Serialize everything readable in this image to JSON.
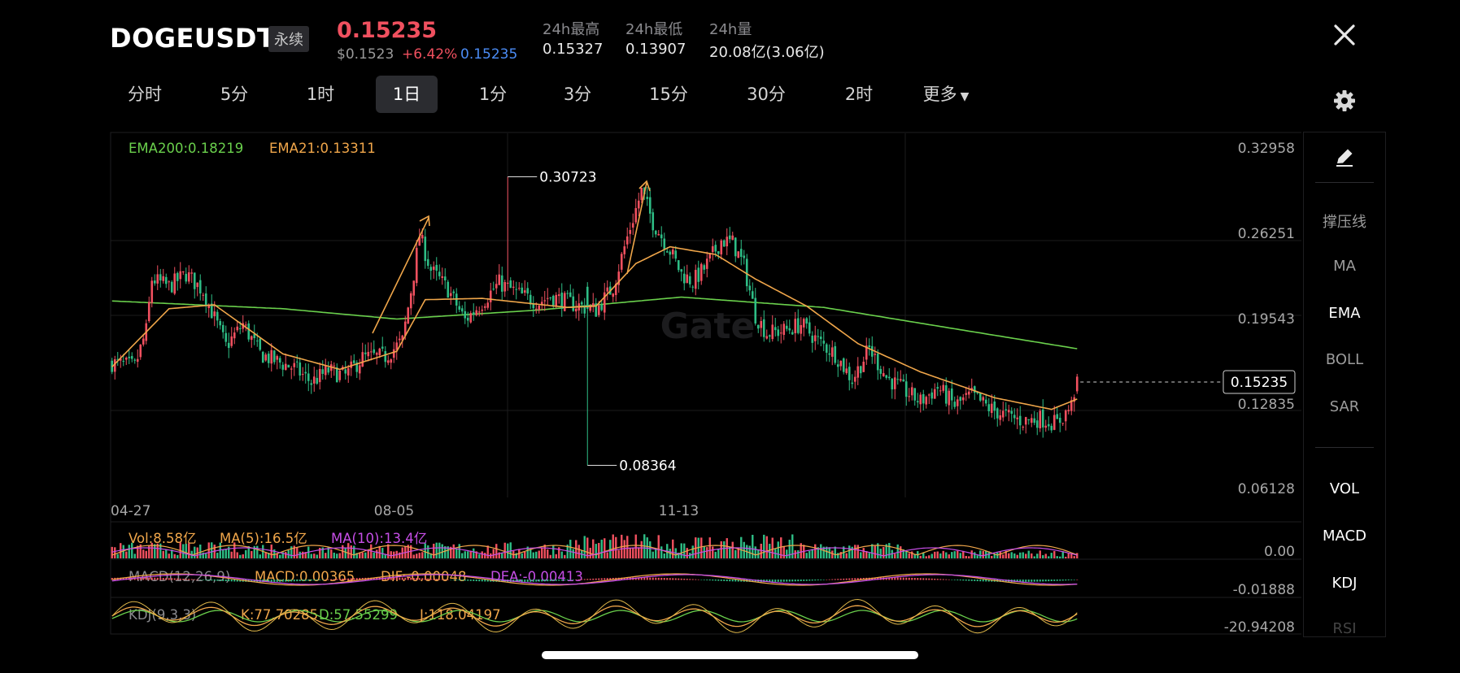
{
  "header": {
    "symbol": "DOGEUSDT",
    "badge": "永续",
    "last_price": "0.15235",
    "usd_price": "$0.1523",
    "change_pct": "+6.42%",
    "mark_price": "0.15235",
    "stats": [
      {
        "label": "24h最高",
        "value": "0.15327"
      },
      {
        "label": "24h最低",
        "value": "0.13907"
      },
      {
        "label": "24h量",
        "value": "20.08亿(3.06亿)"
      }
    ]
  },
  "timeframes": [
    "分时",
    "5分",
    "1时",
    "1日",
    "1分",
    "3分",
    "15分",
    "30分",
    "2时",
    "更多"
  ],
  "active_timeframe": "1日",
  "sidebar": {
    "tools": [
      "撑压线",
      "MA",
      "EMA",
      "BOLL",
      "SAR"
    ],
    "active_tool": "EMA",
    "indicators": [
      "VOL",
      "MACD",
      "KDJ",
      "RSI"
    ]
  },
  "watermark": "Gate",
  "colors": {
    "up": "#f0505f",
    "down": "#2ebd85",
    "ema200": "#6ad04c",
    "ema21": "#f0a64a",
    "ma10": "#c64ee6",
    "accent": "#4b8cf5"
  },
  "chart_data": [
    {
      "type": "candlestick",
      "legend": [
        {
          "label": "EMA200:0.18219",
          "color": "#6ad04c"
        },
        {
          "label": "EMA21:0.13311",
          "color": "#f0a64a"
        }
      ],
      "y_ticks": [
        "0.32958",
        "0.26251",
        "0.19543",
        "0.12835",
        "0.06128"
      ],
      "ylim": [
        0.06128,
        0.32958
      ],
      "x_ticks": [
        {
          "label": "04-27",
          "index": 0
        },
        {
          "label": "08-05",
          "index": 100
        },
        {
          "label": "11-13",
          "index": 200
        }
      ],
      "current_price": "0.15235",
      "annotations": [
        {
          "label": "0.30723",
          "index": 139,
          "value": 0.30723
        },
        {
          "label": "0.08364",
          "index": 167,
          "value": 0.08364
        }
      ],
      "anchors": [
        [
          0,
          0.163
        ],
        [
          8,
          0.16
        ],
        [
          12,
          0.188
        ],
        [
          14,
          0.228
        ],
        [
          16,
          0.226
        ],
        [
          20,
          0.222
        ],
        [
          26,
          0.232
        ],
        [
          32,
          0.219
        ],
        [
          40,
          0.176
        ],
        [
          46,
          0.193
        ],
        [
          52,
          0.17
        ],
        [
          58,
          0.164
        ],
        [
          64,
          0.159
        ],
        [
          70,
          0.148
        ],
        [
          76,
          0.157
        ],
        [
          82,
          0.153
        ],
        [
          88,
          0.167
        ],
        [
          96,
          0.168
        ],
        [
          102,
          0.18
        ],
        [
          106,
          0.232
        ],
        [
          108,
          0.262
        ],
        [
          112,
          0.235
        ],
        [
          118,
          0.22
        ],
        [
          124,
          0.196
        ],
        [
          130,
          0.21
        ],
        [
          136,
          0.225
        ],
        [
          144,
          0.215
        ],
        [
          150,
          0.21
        ],
        [
          154,
          0.215
        ],
        [
          160,
          0.21
        ],
        [
          166,
          0.206
        ],
        [
          170,
          0.204
        ],
        [
          176,
          0.222
        ],
        [
          182,
          0.268
        ],
        [
          186,
          0.296
        ],
        [
          190,
          0.272
        ],
        [
          196,
          0.25
        ],
        [
          200,
          0.232
        ],
        [
          204,
          0.226
        ],
        [
          208,
          0.236
        ],
        [
          214,
          0.258
        ],
        [
          218,
          0.256
        ],
        [
          222,
          0.238
        ],
        [
          226,
          0.2
        ],
        [
          230,
          0.186
        ],
        [
          236,
          0.188
        ],
        [
          242,
          0.193
        ],
        [
          248,
          0.18
        ],
        [
          254,
          0.17
        ],
        [
          260,
          0.15
        ],
        [
          266,
          0.174
        ],
        [
          272,
          0.152
        ],
        [
          278,
          0.142
        ],
        [
          284,
          0.133
        ],
        [
          290,
          0.144
        ],
        [
          296,
          0.13
        ],
        [
          302,
          0.138
        ],
        [
          308,
          0.128
        ],
        [
          314,
          0.122
        ],
        [
          320,
          0.118
        ],
        [
          326,
          0.12
        ],
        [
          332,
          0.116
        ],
        [
          337,
          0.13
        ],
        [
          339,
          0.152
        ]
      ],
      "ema200_anchors": [
        [
          0,
          0.211
        ],
        [
          60,
          0.205
        ],
        [
          100,
          0.197
        ],
        [
          150,
          0.204
        ],
        [
          200,
          0.214
        ],
        [
          250,
          0.206
        ],
        [
          300,
          0.188
        ],
        [
          339,
          0.174
        ]
      ],
      "ema21_anchors": [
        [
          0,
          0.16
        ],
        [
          20,
          0.205
        ],
        [
          36,
          0.208
        ],
        [
          60,
          0.17
        ],
        [
          80,
          0.158
        ],
        [
          100,
          0.172
        ],
        [
          110,
          0.212
        ],
        [
          130,
          0.213
        ],
        [
          160,
          0.206
        ],
        [
          170,
          0.207
        ],
        [
          184,
          0.24
        ],
        [
          196,
          0.253
        ],
        [
          212,
          0.247
        ],
        [
          226,
          0.228
        ],
        [
          244,
          0.207
        ],
        [
          262,
          0.178
        ],
        [
          284,
          0.156
        ],
        [
          310,
          0.136
        ],
        [
          330,
          0.127
        ],
        [
          339,
          0.135
        ]
      ]
    },
    {
      "type": "bar",
      "legend": [
        {
          "label": "Vol:8.58亿",
          "color": "#f0a64a"
        },
        {
          "label": "MA(5):16.5亿",
          "color": "#f0a64a"
        },
        {
          "label": "MA(10):13.4亿",
          "color": "#c64ee6"
        }
      ],
      "y_ticks": [
        "0.00"
      ]
    },
    {
      "type": "line",
      "legend": [
        {
          "label": "MACD(12,26,9)",
          "color": "#8a8a8e"
        },
        {
          "label": "MACD:0.00365",
          "color": "#f0a64a"
        },
        {
          "label": "DIF:-0.00048",
          "color": "#f0a64a"
        },
        {
          "label": "DEA:-0.00413",
          "color": "#c64ee6"
        }
      ],
      "y_ticks": [
        "-0.01888"
      ]
    },
    {
      "type": "line",
      "legend": [
        {
          "label": "KDJ(9,3,3)",
          "color": "#8a8a8e"
        },
        {
          "label": "K:77.70285",
          "color": "#f0a64a"
        },
        {
          "label": "D:57.55299",
          "color": "#6ad04c"
        },
        {
          "label": "J:118.04197",
          "color": "#f0a64a"
        }
      ],
      "y_ticks": [
        "-20.94208"
      ]
    }
  ]
}
